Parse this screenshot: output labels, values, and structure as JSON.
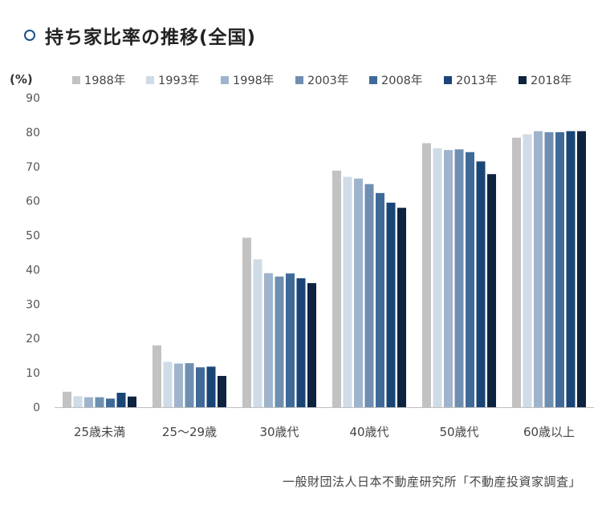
{
  "title": "持ち家比率の推移(全国)",
  "source": "一般財団法人日本不動産研究所「不動産投資家調査」",
  "chart_data": {
    "type": "bar",
    "title": "持ち家比率の推移(全国)",
    "ylabel": "(%)",
    "xlabel": "",
    "ylim": [
      0,
      90
    ],
    "yticks": [
      0,
      10,
      20,
      30,
      40,
      50,
      60,
      70,
      80,
      90
    ],
    "grid": false,
    "legend_position": "top",
    "categories": [
      "25歳未満",
      "25～29歳",
      "30歳代",
      "40歳代",
      "50歳代",
      "60歳以上"
    ],
    "series": [
      {
        "name": "1988年",
        "color": "#c2c2c2",
        "values": [
          4.5,
          18.0,
          49.3,
          68.8,
          76.8,
          78.4
        ]
      },
      {
        "name": "1993年",
        "color": "#cfdbe6",
        "values": [
          3.2,
          13.2,
          43.0,
          67.0,
          75.3,
          79.4
        ]
      },
      {
        "name": "1998年",
        "color": "#9fb4cc",
        "values": [
          2.9,
          12.7,
          39.0,
          66.5,
          74.8,
          80.3
        ]
      },
      {
        "name": "2003年",
        "color": "#6f8fb1",
        "values": [
          2.9,
          12.8,
          38.0,
          64.9,
          75.0,
          80.0
        ]
      },
      {
        "name": "2008年",
        "color": "#3f6a98",
        "values": [
          2.5,
          11.6,
          38.9,
          62.3,
          74.2,
          80.0
        ]
      },
      {
        "name": "2013年",
        "color": "#1a4577",
        "values": [
          4.2,
          11.8,
          37.5,
          59.5,
          71.5,
          80.3
        ]
      },
      {
        "name": "2018年",
        "color": "#0d2340",
        "values": [
          3.1,
          9.1,
          36.1,
          58.0,
          67.8,
          80.3
        ]
      }
    ]
  }
}
